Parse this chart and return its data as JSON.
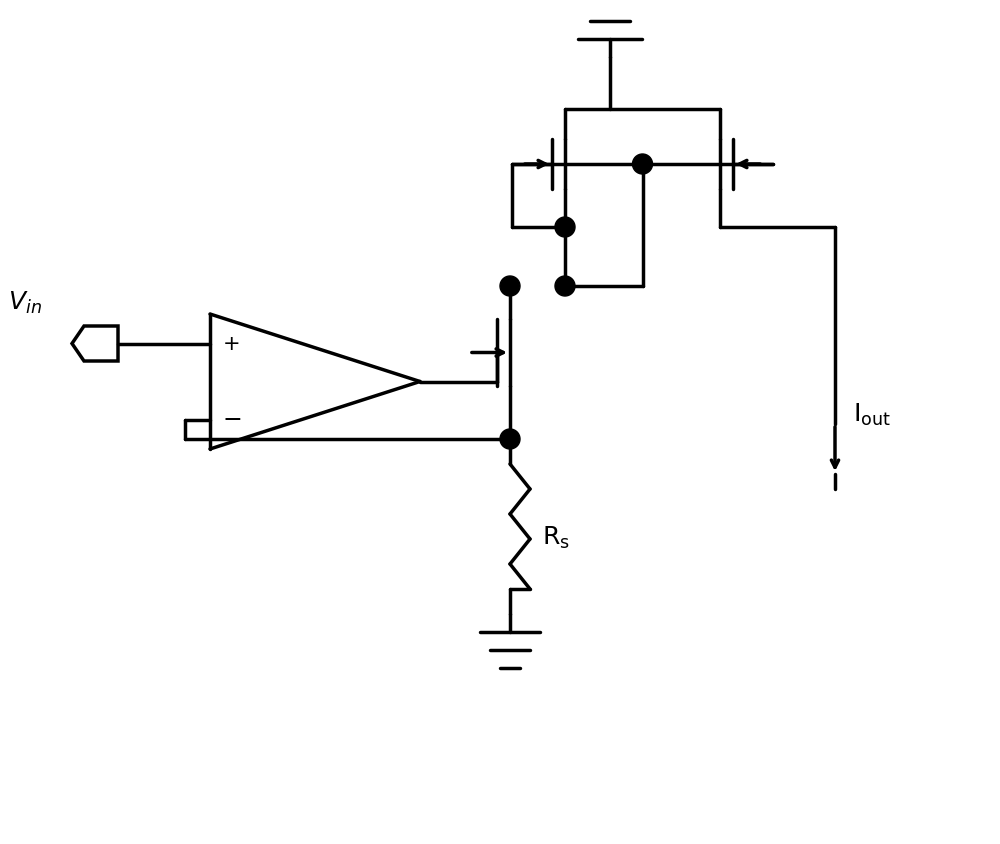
{
  "bg_color": "#ffffff",
  "line_color": "#000000",
  "line_width": 2.5,
  "fig_width": 10.0,
  "fig_height": 8.45
}
